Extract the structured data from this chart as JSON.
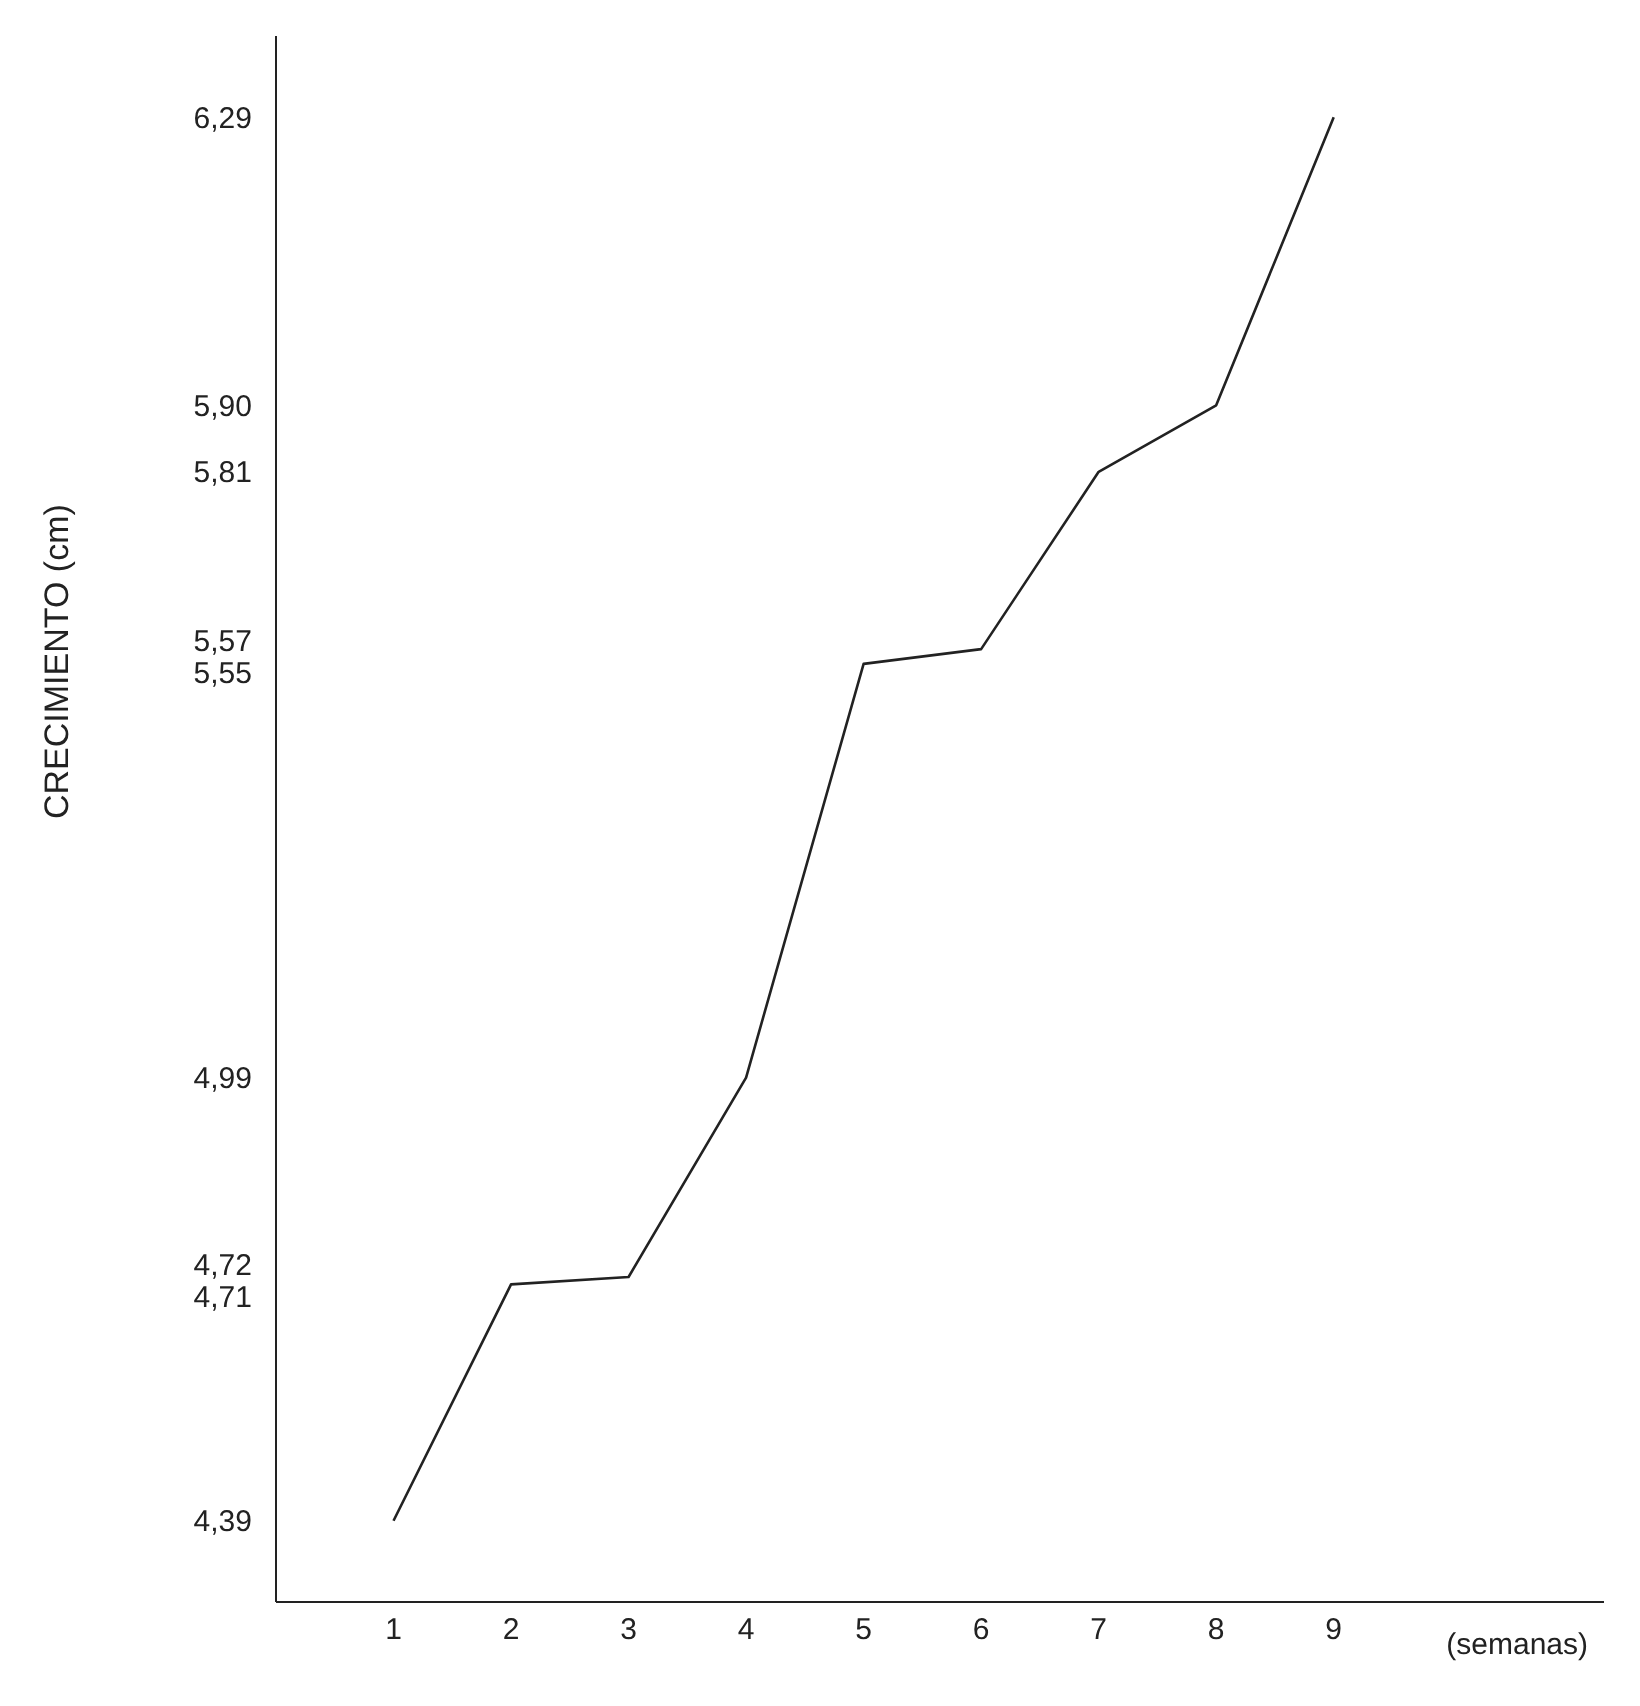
{
  "chart_data": {
    "type": "line",
    "xlabel": "(semanas)",
    "ylabel": "CRECIMIENTO (cm)",
    "x": [
      1,
      2,
      3,
      4,
      5,
      6,
      7,
      8,
      9
    ],
    "series": [
      {
        "color": "#222222",
        "values": [
          4.39,
          4.71,
          4.72,
          4.99,
          5.55,
          5.57,
          5.81,
          5.9,
          6.29
        ]
      }
    ],
    "xlim": [
      0,
      11.3
    ],
    "xticks": [
      1,
      2,
      3,
      4,
      5,
      6,
      7,
      8,
      9
    ],
    "ylim": [
      4.28,
      6.4
    ],
    "yticks": [
      {
        "value": 4.39,
        "label": "4,39"
      },
      {
        "value": 4.71,
        "label": "4,71"
      },
      {
        "value": 4.72,
        "label": "4,72"
      },
      {
        "value": 4.99,
        "label": "4,99"
      },
      {
        "value": 5.55,
        "label": "5,55"
      },
      {
        "value": 5.57,
        "label": "5,57"
      },
      {
        "value": 5.81,
        "label": "5,81"
      },
      {
        "value": 5.9,
        "label": "5,90"
      },
      {
        "value": 6.29,
        "label": "6,29"
      }
    ],
    "grid": false,
    "legend": false,
    "marker": "none",
    "line_style": "solid"
  }
}
